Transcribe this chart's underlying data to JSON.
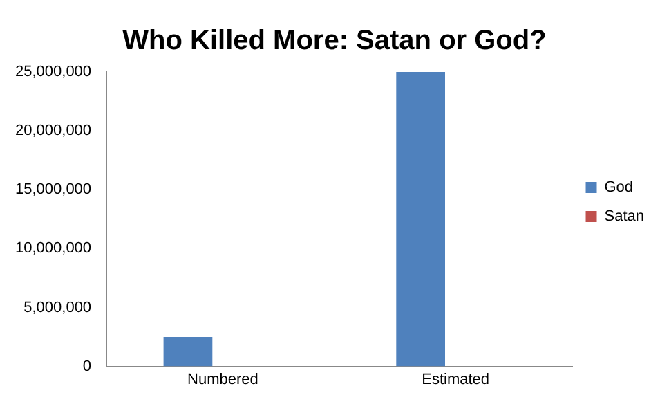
{
  "chart_data": {
    "type": "bar",
    "title": "Who Killed More: Satan or God?",
    "categories": [
      "Numbered",
      "Estimated"
    ],
    "series": [
      {
        "name": "God",
        "color": "#4f81bd",
        "values": [
          2500000,
          25000000
        ]
      },
      {
        "name": "Satan",
        "color": "#c0504d",
        "values": [
          0,
          0
        ]
      }
    ],
    "ylim": [
      0,
      25000000
    ],
    "yticks": [
      0,
      {
        "value": 5000000,
        "label": "5,000,000"
      },
      {
        "value": 10000000,
        "label": "10,000,000"
      },
      {
        "value": 15000000,
        "label": "15,000,000"
      },
      {
        "value": 20000000,
        "label": "20,000,000"
      },
      {
        "value": 25000000,
        "label": "25,000,000"
      }
    ],
    "grid": false,
    "legend": "right"
  }
}
